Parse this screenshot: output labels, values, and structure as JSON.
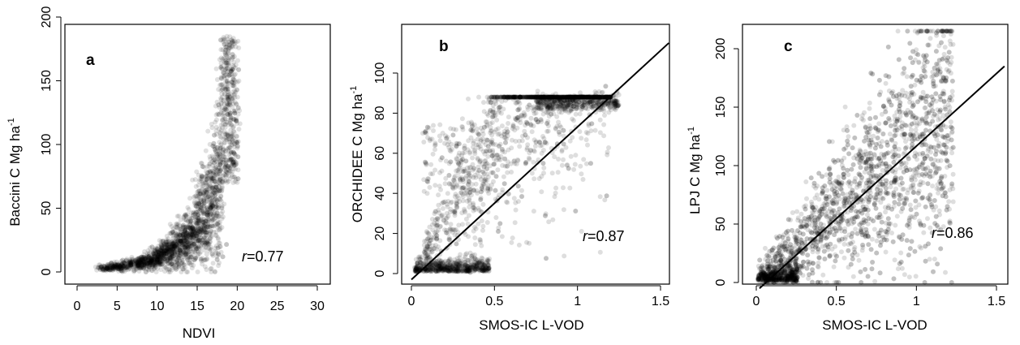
{
  "chart_data": [
    {
      "type": "scatter",
      "panel_label": "a",
      "xlabel": "NDVI",
      "ylabel_main": "Baccini C Mg ha",
      "ylabel_sup": "-1",
      "xlim": [
        0,
        30
      ],
      "ylim": [
        0,
        200
      ],
      "xticks": [
        0,
        5,
        10,
        15,
        20,
        25,
        30
      ],
      "yticks": [
        0,
        50,
        100,
        150,
        200
      ],
      "r_prefix": "r",
      "r_suffix": "=0.77",
      "point_color": "#000000",
      "regression_line": null,
      "points_shape": "exponential-like increase: near 0-10 until NDVI ~12, then rising steeply to ~180 at NDVI ~19"
    },
    {
      "type": "scatter",
      "panel_label": "b",
      "xlabel": "SMOS-IC L-VOD",
      "ylabel_main": "ORCHIDEE C Mg ha",
      "ylabel_sup": "-1",
      "xlim": [
        0,
        1.5
      ],
      "ylim": [
        0,
        120
      ],
      "xticks": [
        0,
        0.5,
        1,
        1.5
      ],
      "xtick_labels": [
        "0",
        "0.5",
        "1",
        "1.5"
      ],
      "yticks": [
        0,
        20,
        40,
        60,
        80,
        100
      ],
      "r_prefix": "r",
      "r_suffix": "=0.87",
      "point_color": "#000000",
      "regression_line": {
        "x": [
          0,
          1.55
        ],
        "y": [
          -3,
          115
        ]
      },
      "points_shape": "dense cloud rising from 0 to ~80 at L-VOD 0.5, plateau near 85 from L-VOD 0.7 to 1.25"
    },
    {
      "type": "scatter",
      "panel_label": "c",
      "xlabel": "SMOS-IC L-VOD",
      "ylabel_main": "LPJ C Mg ha",
      "ylabel_sup": "-1",
      "xlim": [
        0,
        1.5
      ],
      "ylim": [
        0,
        220
      ],
      "xticks": [
        0,
        0.5,
        1,
        1.5
      ],
      "xtick_labels": [
        "0",
        "0.5",
        "1",
        "1.5"
      ],
      "yticks": [
        0,
        50,
        100,
        150,
        200
      ],
      "r_prefix": "r",
      "r_suffix": "=0.86",
      "point_color": "#000000",
      "regression_line": {
        "x": [
          0.02,
          1.55
        ],
        "y": [
          -5,
          185
        ]
      },
      "points_shape": "broad cloud increasing roughly linearly from 0 to ~150 at L-VOD 1.2"
    }
  ]
}
